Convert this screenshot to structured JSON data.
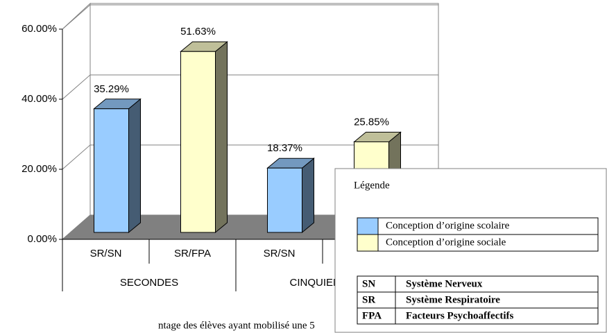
{
  "chart_data": {
    "type": "bar3d",
    "categories": [
      "SR/SN",
      "SR/FPA",
      "SR/SN",
      null
    ],
    "groups": [
      "SECONDES",
      "CINQUIEMES"
    ],
    "series": [
      {
        "name": "Conception d’origine scolaire",
        "color": "#99ccff",
        "values": [
          35.29,
          null,
          18.37,
          null
        ],
        "value_labels": [
          "35.29%",
          null,
          "18.37%",
          null
        ]
      },
      {
        "name": "Conception d’origine sociale",
        "color": "#ffffcc",
        "values": [
          null,
          51.63,
          null,
          25.85
        ],
        "value_labels": [
          null,
          "51.63%",
          null,
          "25.85%"
        ]
      }
    ],
    "ylim": [
      0,
      60
    ],
    "yticks": [
      {
        "value": 0,
        "label": "0.00%"
      },
      {
        "value": 20,
        "label": "20.00%"
      },
      {
        "value": 40,
        "label": "40.00%"
      },
      {
        "value": 60,
        "label": "60.00%"
      }
    ],
    "grid": true,
    "legend_title": "Légende",
    "abbreviations": [
      [
        "SN",
        "Système Nerveux"
      ],
      [
        "SR",
        "Système Respiratoire"
      ],
      [
        "FPA",
        "Facteurs Psychoaffectifs"
      ]
    ],
    "caption": "ntage des élèves ayant mobilisé une 5"
  }
}
